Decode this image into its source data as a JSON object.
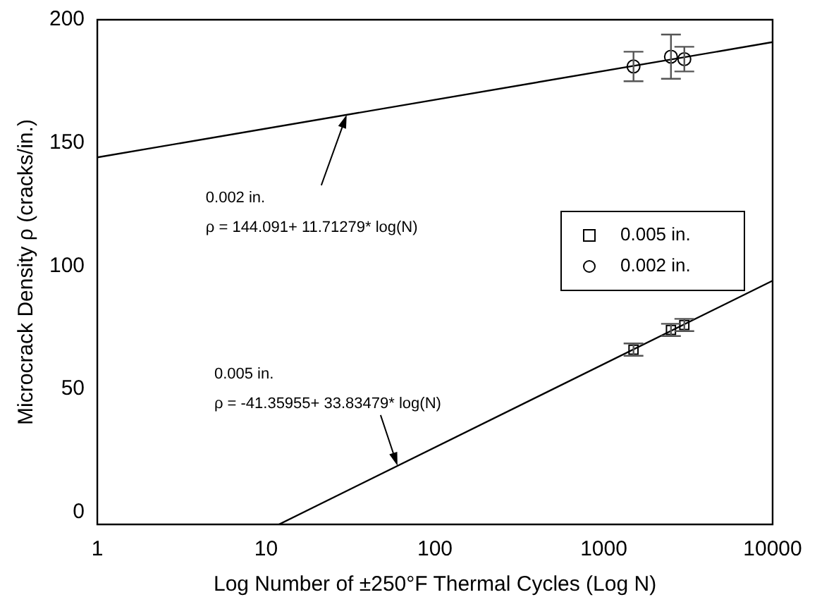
{
  "chart_data": {
    "type": "scatter",
    "xlabel": "Log Number of ±250°F Thermal Cycles (Log N)",
    "ylabel": "Microcrack Density ρ (cracks/in.)",
    "log": "x",
    "xlim": [
      1,
      10000
    ],
    "xticks": [
      1,
      10,
      100,
      1000,
      10000
    ],
    "ylim": [
      -5,
      200
    ],
    "yticks": [
      0,
      50,
      100,
      150,
      200
    ],
    "grid": false,
    "legend": "right",
    "series": [
      {
        "name": "0.005 in.",
        "marker": "square",
        "color": "#000000",
        "x": [
          1500,
          2500,
          3000
        ],
        "values": [
          66,
          74,
          76
        ],
        "errors": [
          2.5,
          2.5,
          2.5
        ]
      },
      {
        "name": "0.002 in.",
        "marker": "circle",
        "color": "#000000",
        "x": [
          1500,
          2500,
          3000
        ],
        "values": [
          181,
          185,
          184
        ],
        "errors": [
          6,
          9,
          5
        ]
      },
      {
        "type": "line",
        "marker": "none",
        "color": "#000000",
        "x": [
          1,
          10000
        ],
        "values": [
          144.1,
          190.9
        ]
      },
      {
        "type": "line",
        "marker": "none",
        "color": "#000000",
        "x": [
          11.9,
          10000
        ],
        "values": [
          -5,
          94.0
        ]
      }
    ],
    "annotations": [
      {
        "text": "0.002 in.\nρ = 144.091+ 11.71279* log(N)",
        "x": 30,
        "y": 161.4
      },
      {
        "text": "0.005 in.\nρ = -41.35955+ 33.83479* log(N)",
        "x": 60,
        "y": 18.8
      }
    ]
  }
}
